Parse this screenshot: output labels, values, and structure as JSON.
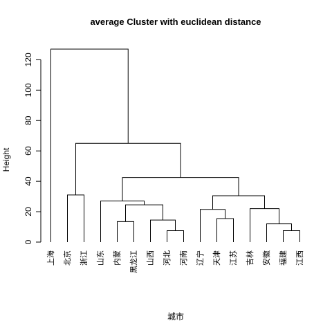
{
  "chart_data": {
    "type": "dendrogram",
    "title": "average Cluster with euclidean distance",
    "xlabel": "城市",
    "ylabel": "Height",
    "ylim": [
      0,
      130
    ],
    "yticks": [
      0,
      20,
      40,
      60,
      80,
      100,
      120
    ],
    "leaves": [
      "上海",
      "北京",
      "浙江",
      "山东",
      "内蒙",
      "黑龙江",
      "山西",
      "河北",
      "河南",
      "辽宁",
      "天津",
      "江苏",
      "吉林",
      "安徽",
      "福建",
      "江西"
    ],
    "merges": [
      {
        "id": "m1",
        "left": "L7",
        "right": "L8",
        "height": 7.5
      },
      {
        "id": "m2",
        "left": "L14",
        "right": "L15",
        "height": 7.5
      },
      {
        "id": "m3",
        "left": "L13",
        "right": "m2",
        "height": 12
      },
      {
        "id": "m4",
        "left": "L4",
        "right": "L5",
        "height": 13.5
      },
      {
        "id": "m5",
        "left": "L6",
        "right": "m1",
        "height": 14.5
      },
      {
        "id": "m6",
        "left": "L10",
        "right": "L11",
        "height": 15.5
      },
      {
        "id": "m7",
        "left": "L9",
        "right": "m6",
        "height": 21.5
      },
      {
        "id": "m8",
        "left": "L12",
        "right": "m3",
        "height": 22
      },
      {
        "id": "m9",
        "left": "m4",
        "right": "m5",
        "height": 24.5
      },
      {
        "id": "m10",
        "left": "L3",
        "right": "m9",
        "height": 27
      },
      {
        "id": "m11",
        "left": "m7",
        "right": "m8",
        "height": 30.5
      },
      {
        "id": "m12",
        "left": "L1",
        "right": "L2",
        "height": 31
      },
      {
        "id": "m13",
        "left": "m10",
        "right": "m11",
        "height": 42.5
      },
      {
        "id": "m14",
        "left": "m12",
        "right": "m13",
        "height": 65
      },
      {
        "id": "m15",
        "left": "L0",
        "right": "m14",
        "height": 127
      }
    ]
  }
}
